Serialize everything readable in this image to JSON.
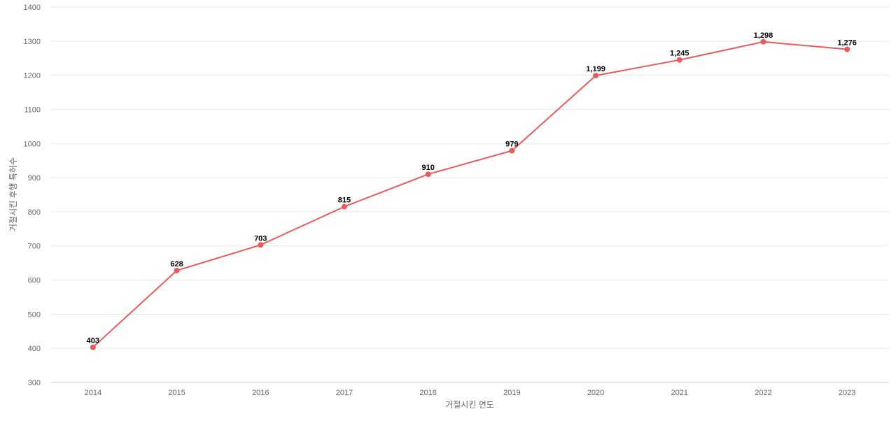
{
  "chart_data": {
    "type": "line",
    "title": "",
    "xlabel": "거절시킨 연도",
    "ylabel": "거절시킨 후행 특허수",
    "ylim": [
      300,
      1400
    ],
    "yticks": [
      300,
      400,
      500,
      600,
      700,
      800,
      900,
      1000,
      1100,
      1200,
      1300,
      1400
    ],
    "grid": true,
    "legend": "none",
    "categories": [
      "2014",
      "2015",
      "2016",
      "2017",
      "2018",
      "2019",
      "2020",
      "2021",
      "2022",
      "2023"
    ],
    "series": [
      {
        "values": [
          403,
          628,
          703,
          815,
          910,
          979,
          1199,
          1245,
          1298,
          1276
        ],
        "labels": [
          "403",
          "628",
          "703",
          "815",
          "910",
          "979",
          "1,199",
          "1,245",
          "1,298",
          "1,276"
        ],
        "color": "#eb5a5a"
      }
    ]
  }
}
